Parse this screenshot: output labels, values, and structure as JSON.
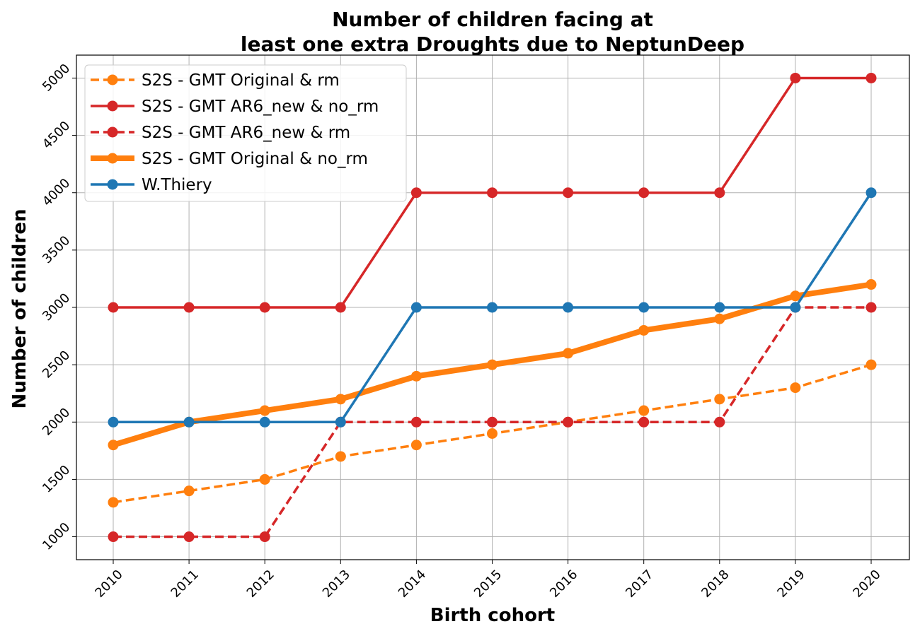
{
  "chart_data": {
    "type": "line",
    "title_lines": [
      "Number of children facing at",
      "least one extra Droughts due to NeptunDeep"
    ],
    "xlabel": "Birth cohort",
    "ylabel": "Number of children",
    "x": [
      "2010",
      "2011",
      "2012",
      "2013",
      "2014",
      "2015",
      "2016",
      "2017",
      "2018",
      "2019",
      "2020"
    ],
    "yticks": [
      "1000",
      "1500",
      "2000",
      "2500",
      "3000",
      "3500",
      "4000",
      "4500",
      "5000"
    ],
    "ylim": [
      800,
      5200
    ],
    "grid": true,
    "legend_position": "upper-left",
    "series": [
      {
        "name": "S2S - GMT Original & rm",
        "color": "#ff7f0e",
        "style": "dashed",
        "weight": "normal",
        "values": [
          1300,
          1400,
          1500,
          1700,
          1800,
          1900,
          2000,
          2100,
          2200,
          2300,
          2500
        ]
      },
      {
        "name": "S2S - GMT AR6_new & no_rm",
        "color": "#d62728",
        "style": "solid",
        "weight": "normal",
        "values": [
          3000,
          3000,
          3000,
          3000,
          4000,
          4000,
          4000,
          4000,
          4000,
          5000,
          5000
        ]
      },
      {
        "name": "S2S - GMT AR6_new & rm",
        "color": "#d62728",
        "style": "dashed",
        "weight": "normal",
        "values": [
          1000,
          1000,
          1000,
          2000,
          2000,
          2000,
          2000,
          2000,
          2000,
          3000,
          3000
        ]
      },
      {
        "name": "S2S - GMT Original & no_rm",
        "color": "#ff7f0e",
        "style": "solid",
        "weight": "thick",
        "values": [
          1800,
          2000,
          2100,
          2200,
          2400,
          2500,
          2600,
          2800,
          2900,
          3100,
          3200
        ]
      },
      {
        "name": "W.Thiery",
        "color": "#1f77b4",
        "style": "solid",
        "weight": "normal",
        "values": [
          2000,
          2000,
          2000,
          2000,
          3000,
          3000,
          3000,
          3000,
          3000,
          3000,
          4000
        ]
      }
    ]
  }
}
